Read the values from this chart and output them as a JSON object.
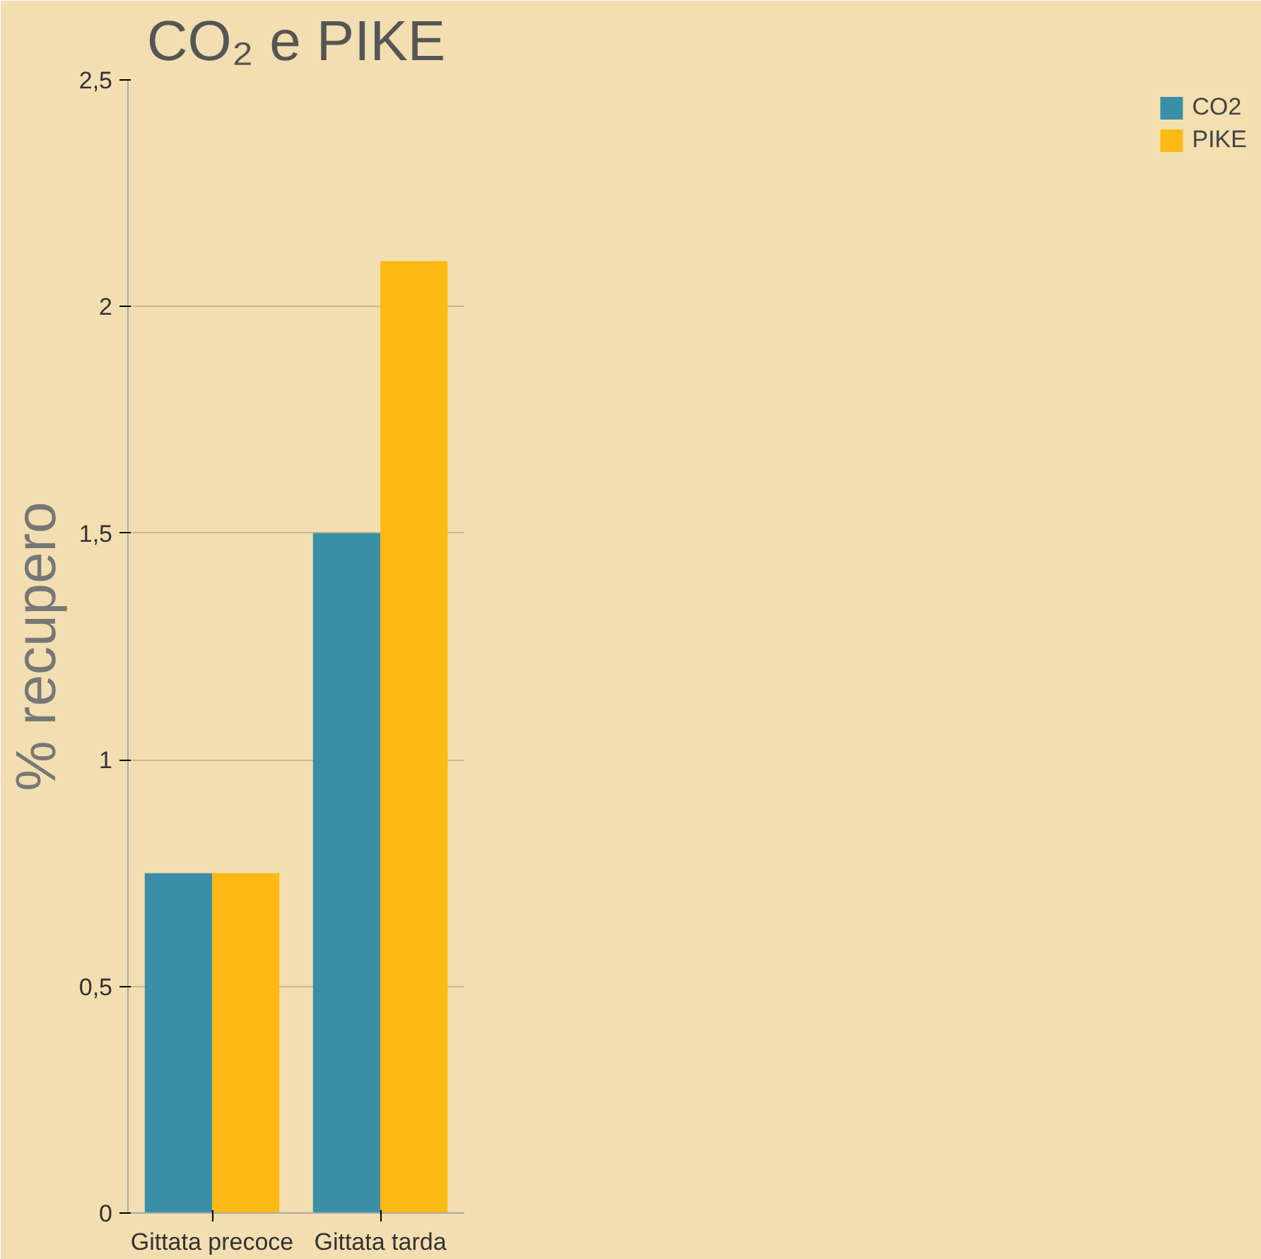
{
  "chart_data": {
    "type": "bar",
    "title": "CO₂ e PIKE",
    "ylabel": "% recupero",
    "categories": [
      "Gittata precoce",
      "Gittata tarda"
    ],
    "series": [
      {
        "name": "CO2",
        "color": "#3a8fa6",
        "values": [
          0.75,
          1.5
        ]
      },
      {
        "name": "PIKE",
        "color": "#fdb913",
        "values": [
          0.75,
          2.1
        ]
      }
    ],
    "ylim": [
      0,
      2.5
    ],
    "yticks": [
      0,
      {
        "value": 0.5,
        "label": "0,5"
      },
      1,
      {
        "value": 1.5,
        "label": "1,5"
      },
      2,
      {
        "value": 2.5,
        "label": "2,5"
      }
    ],
    "grid": "y",
    "legend": "right"
  }
}
